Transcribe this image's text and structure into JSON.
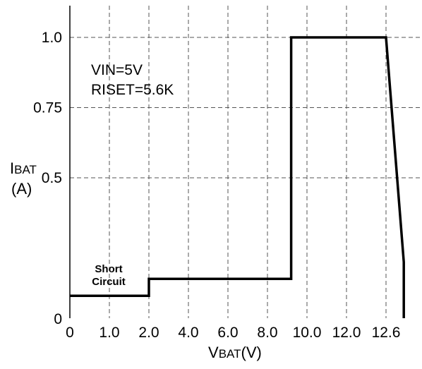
{
  "chart_data": {
    "type": "line",
    "title": "",
    "xlabel_main": "V",
    "xlabel_sub": "BAT",
    "xlabel_unit": "(V)",
    "ylabel_main": "I",
    "ylabel_sub": "BAT",
    "ylabel_unit": "(A)",
    "x_ticks": [
      {
        "label": "0",
        "value": 0
      },
      {
        "label": "1.0",
        "value": 1
      },
      {
        "label": "2.0",
        "value": 2
      },
      {
        "label": "4.0",
        "value": 3
      },
      {
        "label": "6.0",
        "value": 4
      },
      {
        "label": "8.0",
        "value": 5
      },
      {
        "label": "10.0",
        "value": 6
      },
      {
        "label": "12.0",
        "value": 7
      },
      {
        "label": "12.6",
        "value": 8
      }
    ],
    "y_ticks": [
      {
        "label": "0",
        "value": 0
      },
      {
        "label": "0.5",
        "value": 0.5
      },
      {
        "label": "0.75",
        "value": 0.75
      },
      {
        "label": "1.0",
        "value": 1.0
      }
    ],
    "xlim": [
      0,
      8.3
    ],
    "ylim": [
      0,
      1.0
    ],
    "grid": true,
    "series": [
      {
        "x": [
          0,
          2.0,
          2.0,
          5.6,
          5.6,
          8.0,
          8.45,
          8.45
        ],
        "y": [
          0.08,
          0.08,
          0.14,
          0.14,
          1.0,
          1.0,
          0.2,
          0
        ]
      }
    ],
    "annotations": {
      "vin": "VIN=5V",
      "riset": "RISET=5.6K",
      "short_line1": "Short",
      "short_line2": "Circuit"
    }
  }
}
